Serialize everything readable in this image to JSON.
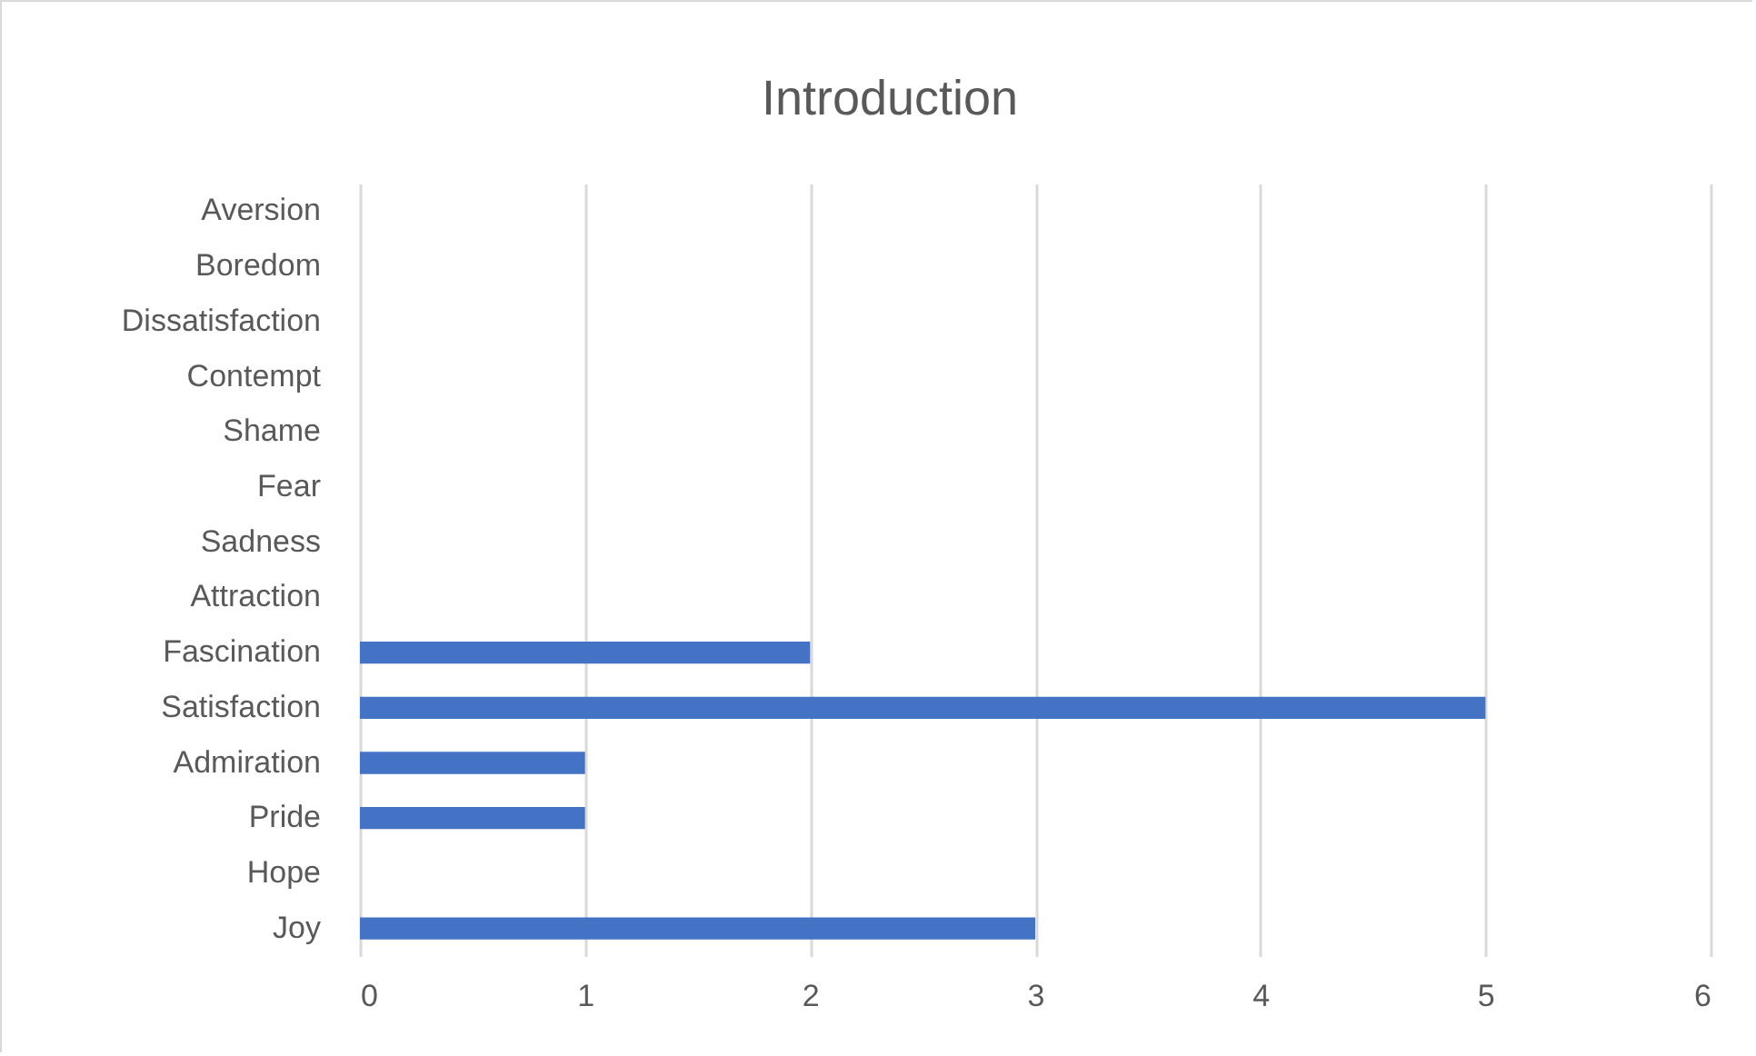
{
  "chart_data": {
    "type": "bar",
    "title": "Introduction",
    "orientation": "horizontal",
    "categories": [
      "Aversion",
      "Boredom",
      "Dissatisfaction",
      "Contempt",
      "Shame",
      "Fear",
      "Sadness",
      "Attraction",
      "Fascination",
      "Satisfaction",
      "Admiration",
      "Pride",
      "Hope",
      "Joy"
    ],
    "values": [
      0,
      0,
      0,
      0,
      0,
      0,
      0,
      0,
      2,
      5,
      1,
      1,
      0,
      3
    ],
    "color": "#4472c4",
    "xlim": [
      0,
      6
    ],
    "xticks": [
      0,
      1,
      2,
      3,
      4,
      5,
      6
    ],
    "grid": "x"
  }
}
